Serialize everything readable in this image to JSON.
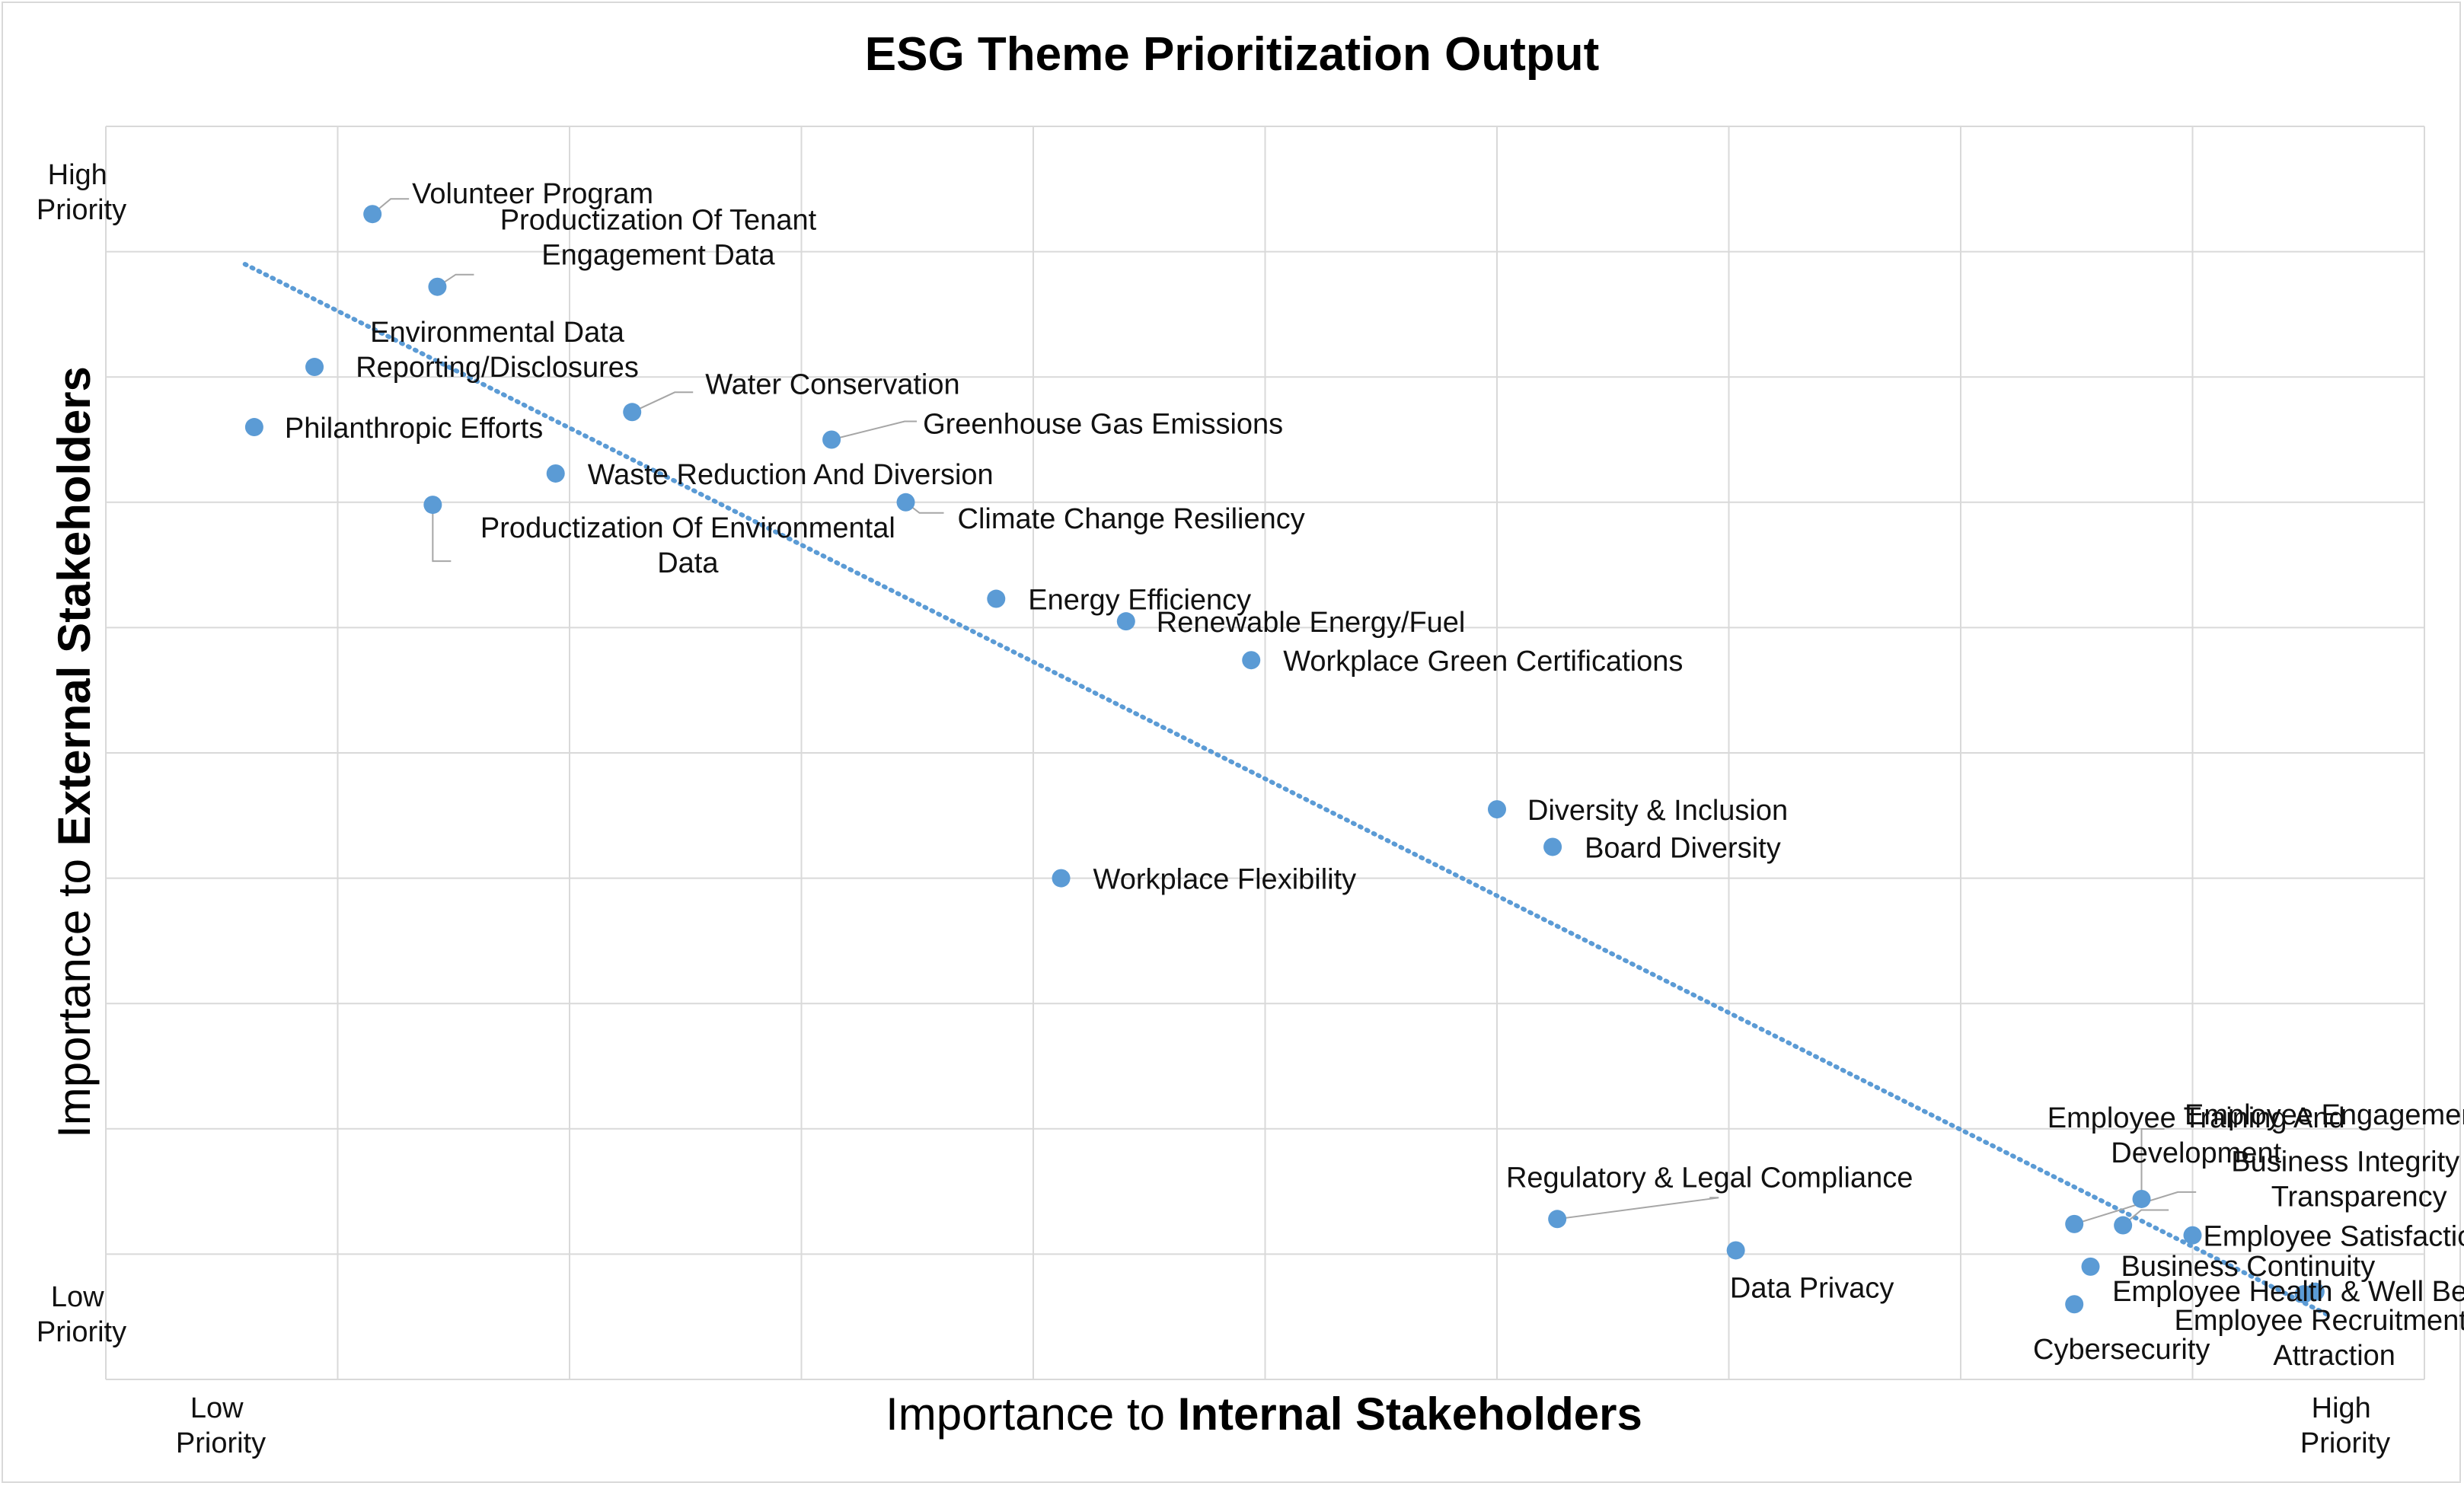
{
  "chart_data": {
    "type": "scatter",
    "title": "ESG Theme Prioritization Output",
    "xlabel": {
      "prefix": "Importance to ",
      "bold": "Internal Stakeholders"
    },
    "ylabel": {
      "prefix": "Importance to ",
      "bold": "External Stakeholders"
    },
    "x_tick_labels": {
      "low": [
        "Low",
        "Priority"
      ],
      "high": [
        "High",
        "Priority"
      ]
    },
    "y_tick_labels": {
      "low": [
        "Low",
        "Priority"
      ],
      "high": [
        "High",
        "Priority"
      ]
    },
    "xlim": [
      0,
      10
    ],
    "ylim": [
      0,
      10
    ],
    "grid": true,
    "legend": "none",
    "marker_color": "#5b9bd5",
    "trendline": {
      "style": "dotted",
      "color": "#5b9bd5",
      "from": [
        0.6,
        8.9
      ],
      "to": [
        9.6,
        0.5
      ]
    },
    "points": [
      {
        "label": [
          "Volunteer Program"
        ],
        "x": 1.15,
        "y": 9.3
      },
      {
        "label": [
          "Productization Of Tenant",
          "Engagement Data"
        ],
        "x": 1.43,
        "y": 8.72
      },
      {
        "label": [
          "Environmental Data",
          "Reporting/Disclosures"
        ],
        "x": 0.9,
        "y": 8.08
      },
      {
        "label": [
          "Philanthropic Efforts"
        ],
        "x": 0.64,
        "y": 7.6
      },
      {
        "label": [
          "Water Conservation"
        ],
        "x": 2.27,
        "y": 7.72
      },
      {
        "label": [
          "Greenhouse Gas Emissions"
        ],
        "x": 3.13,
        "y": 7.5
      },
      {
        "label": [
          "Waste Reduction And Diversion"
        ],
        "x": 1.94,
        "y": 7.23
      },
      {
        "label": [
          "Productization Of Environmental",
          "Data"
        ],
        "x": 1.41,
        "y": 6.98
      },
      {
        "label": [
          "Climate Change Resiliency"
        ],
        "x": 3.45,
        "y": 7.0
      },
      {
        "label": [
          "Energy Efficiency"
        ],
        "x": 3.84,
        "y": 6.23
      },
      {
        "label": [
          "Renewable Energy/Fuel"
        ],
        "x": 4.4,
        "y": 6.05
      },
      {
        "label": [
          "Workplace Green Certifications"
        ],
        "x": 4.94,
        "y": 5.74
      },
      {
        "label": [
          "Diversity & Inclusion"
        ],
        "x": 6.0,
        "y": 4.55
      },
      {
        "label": [
          "Board Diversity"
        ],
        "x": 6.24,
        "y": 4.25
      },
      {
        "label": [
          "Workplace Flexibility"
        ],
        "x": 4.12,
        "y": 4.0
      },
      {
        "label": [
          "Regulatory & Legal Compliance"
        ],
        "x": 6.26,
        "y": 1.28
      },
      {
        "label": [
          "Data Privacy"
        ],
        "x": 7.03,
        "y": 1.03
      },
      {
        "label": [
          "Employee Engagement"
        ],
        "x": 8.78,
        "y": 1.44
      },
      {
        "label": [
          "Employee Training And",
          "Development"
        ],
        "x": 8.49,
        "y": 1.24
      },
      {
        "label": [
          "Business Integrity &",
          "Transparency"
        ],
        "x": 8.7,
        "y": 1.23
      },
      {
        "label": [
          "Employee Satisfaction"
        ],
        "x": 9.0,
        "y": 1.15
      },
      {
        "label": [
          "Business Continuity"
        ],
        "x": 8.56,
        "y": 0.9
      },
      {
        "label": [
          "Employee Health & Well Being"
        ],
        "x": 9.53,
        "y": 0.7
      },
      {
        "label": [
          "Cybersecurity"
        ],
        "x": 8.49,
        "y": 0.6
      },
      {
        "label": [
          "Employee Recruitment &",
          "Attraction"
        ],
        "x": 9.48,
        "y": 0.68
      }
    ]
  }
}
